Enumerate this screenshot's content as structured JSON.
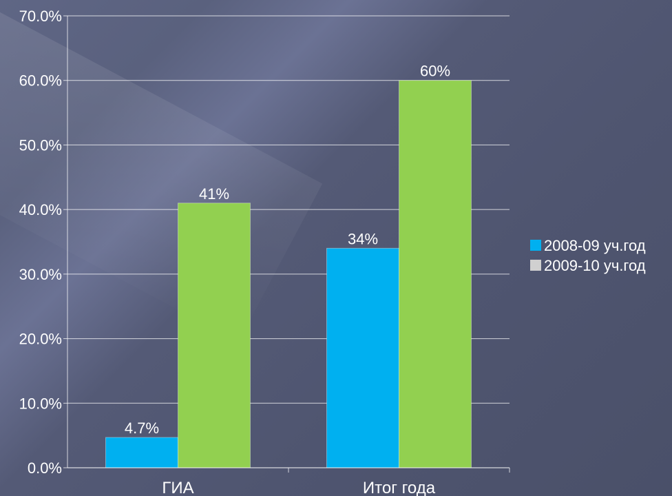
{
  "chart_data": {
    "type": "bar",
    "categories": [
      "ГИА",
      "Итог года"
    ],
    "series": [
      {
        "name": "2008-09 уч.год",
        "values": [
          4.7,
          34
        ],
        "labels": [
          "4.7%",
          "34%"
        ],
        "color": "#00b0f0",
        "legend_color": "#00b0f0"
      },
      {
        "name": "2009-10 уч.год",
        "values": [
          41,
          60
        ],
        "labels": [
          "41%",
          "60%"
        ],
        "color": "#92d050",
        "legend_color": "#d0d0d0"
      }
    ],
    "ylim": [
      0,
      70
    ],
    "yticks": [
      "0.0%",
      "10.0%",
      "20.0%",
      "30.0%",
      "40.0%",
      "50.0%",
      "60.0%",
      "70.0%"
    ],
    "grid": true,
    "legend_position": "right"
  }
}
